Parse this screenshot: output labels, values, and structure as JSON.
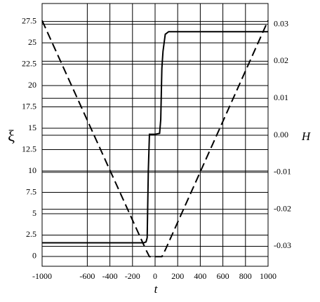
{
  "chart_data": {
    "type": "line",
    "xlabel": "t",
    "ylabel": "ξ",
    "y2label": "H",
    "xlim": [
      -1000,
      1000
    ],
    "xticks": [
      -1000,
      -600,
      -400,
      -200,
      0,
      200,
      400,
      600,
      800,
      1000
    ],
    "ylim": [
      -1.15,
      29.6
    ],
    "yticks": [
      0,
      2.5,
      5,
      7.5,
      10,
      12.5,
      15,
      17.5,
      20,
      22.5,
      25,
      27.5
    ],
    "y2lim": [
      -0.0354,
      0.0356
    ],
    "y2ticks": [
      -0.03,
      -0.02,
      -0.01,
      {
        "value": 0,
        "label": "0.00"
      },
      0.01,
      0.02,
      0.03
    ],
    "grid": true,
    "series": [
      {
        "color": "#000000",
        "dash": false,
        "x": [
          -1000,
          -100,
          -80,
          -70,
          -60,
          -50,
          0,
          40,
          50,
          60,
          70,
          90,
          120,
          1000
        ],
        "values": [
          1.6,
          1.6,
          1.7,
          2.2,
          10,
          14.3,
          14.3,
          14.4,
          16,
          22,
          24,
          26,
          26.3,
          26.3
        ]
      },
      {
        "color": "#000000",
        "dash": true,
        "axis": "y2",
        "x": [
          -1000,
          -80,
          -50,
          60,
          90,
          1000
        ],
        "values": [
          0.031,
          -0.031,
          -0.0328,
          -0.0328,
          -0.031,
          0.031
        ]
      }
    ]
  }
}
